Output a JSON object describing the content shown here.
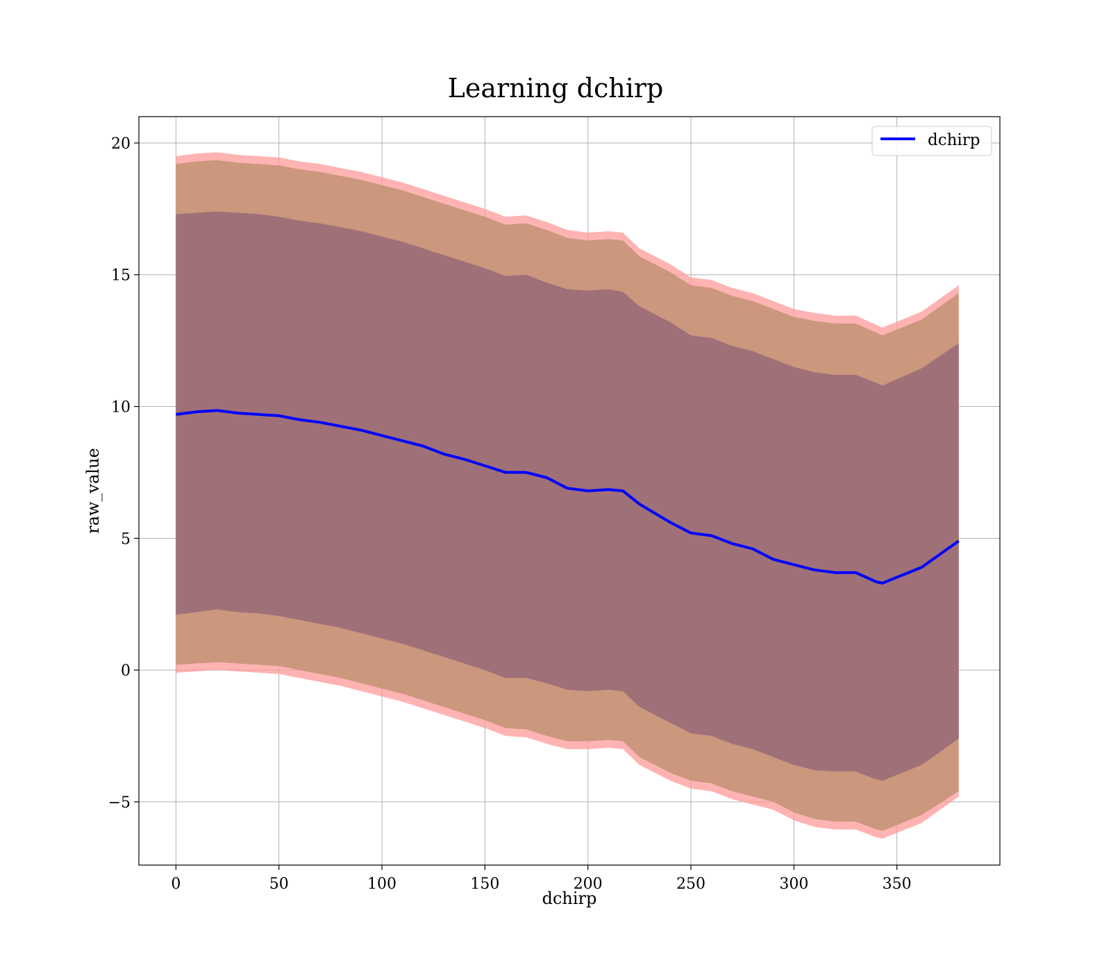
{
  "chart_data": {
    "type": "area",
    "title": "Learning dchirp",
    "xlabel": "dchirp",
    "ylabel": "raw_value",
    "xlim": [
      -18,
      400
    ],
    "ylim": [
      -7.4,
      21
    ],
    "xticks": [
      0,
      50,
      100,
      150,
      200,
      250,
      300,
      350
    ],
    "yticks": [
      -5,
      0,
      5,
      10,
      15,
      20
    ],
    "xtick_labels": [
      "0",
      "50",
      "100",
      "150",
      "200",
      "250",
      "300",
      "350"
    ],
    "ytick_labels": [
      "−5",
      "0",
      "5",
      "10",
      "15",
      "20"
    ],
    "grid": true,
    "legend": {
      "position": "top-right",
      "entries": [
        "dchirp"
      ]
    },
    "colors": {
      "line": "#0000ff",
      "outer_band": "#ff9999",
      "middle_band": "#c8967a",
      "inner_band": "#a07078"
    },
    "x": [
      0,
      10,
      20,
      30,
      40,
      50,
      60,
      70,
      80,
      90,
      100,
      110,
      120,
      130,
      140,
      150,
      160,
      170,
      180,
      190,
      200,
      210,
      217,
      225,
      240,
      250,
      260,
      270,
      280,
      290,
      300,
      310,
      320,
      330,
      340,
      343,
      362,
      380
    ],
    "series": [
      {
        "name": "dchirp",
        "values": [
          9.7,
          9.8,
          9.85,
          9.75,
          9.7,
          9.65,
          9.5,
          9.4,
          9.25,
          9.1,
          8.9,
          8.7,
          8.5,
          8.2,
          8.0,
          7.75,
          7.5,
          7.5,
          7.3,
          6.9,
          6.8,
          6.85,
          6.8,
          6.3,
          5.6,
          5.2,
          5.1,
          4.8,
          4.6,
          4.2,
          4.0,
          3.8,
          3.7,
          3.7,
          3.35,
          3.3,
          3.9,
          4.9
        ]
      }
    ],
    "bands": [
      {
        "lower": [
          -0.1,
          -0.05,
          0.0,
          -0.05,
          -0.1,
          -0.15,
          -0.3,
          -0.45,
          -0.6,
          -0.8,
          -1.0,
          -1.2,
          -1.45,
          -1.7,
          -1.95,
          -2.2,
          -2.5,
          -2.55,
          -2.8,
          -3.0,
          -3.0,
          -2.95,
          -3.0,
          -3.6,
          -4.2,
          -4.5,
          -4.6,
          -4.9,
          -5.1,
          -5.3,
          -5.7,
          -5.95,
          -6.05,
          -6.05,
          -6.35,
          -6.4,
          -5.8,
          -4.8
        ],
        "upper": [
          19.5,
          19.6,
          19.65,
          19.55,
          19.5,
          19.45,
          19.3,
          19.2,
          19.05,
          18.9,
          18.7,
          18.5,
          18.25,
          18.0,
          17.75,
          17.5,
          17.2,
          17.25,
          17.0,
          16.7,
          16.6,
          16.65,
          16.6,
          16.0,
          15.4,
          14.9,
          14.8,
          14.5,
          14.3,
          14.0,
          13.7,
          13.55,
          13.45,
          13.45,
          13.1,
          13.0,
          13.6,
          14.6
        ]
      },
      {
        "lower": [
          0.2,
          0.25,
          0.3,
          0.25,
          0.2,
          0.15,
          0.0,
          -0.15,
          -0.3,
          -0.5,
          -0.7,
          -0.9,
          -1.15,
          -1.4,
          -1.65,
          -1.9,
          -2.2,
          -2.25,
          -2.5,
          -2.7,
          -2.7,
          -2.65,
          -2.7,
          -3.3,
          -3.9,
          -4.2,
          -4.3,
          -4.6,
          -4.8,
          -5.0,
          -5.4,
          -5.65,
          -5.75,
          -5.75,
          -6.05,
          -6.1,
          -5.5,
          -4.6
        ],
        "upper": [
          19.2,
          19.3,
          19.35,
          19.25,
          19.2,
          19.15,
          19.0,
          18.9,
          18.75,
          18.6,
          18.4,
          18.2,
          17.95,
          17.7,
          17.45,
          17.2,
          16.9,
          16.95,
          16.7,
          16.4,
          16.3,
          16.35,
          16.3,
          15.7,
          15.1,
          14.6,
          14.5,
          14.2,
          14.0,
          13.7,
          13.4,
          13.25,
          13.15,
          13.15,
          12.8,
          12.7,
          13.3,
          14.3
        ]
      },
      {
        "lower": [
          2.1,
          2.2,
          2.3,
          2.2,
          2.15,
          2.05,
          1.9,
          1.75,
          1.6,
          1.4,
          1.2,
          1.0,
          0.75,
          0.5,
          0.25,
          0.0,
          -0.3,
          -0.3,
          -0.5,
          -0.75,
          -0.8,
          -0.75,
          -0.8,
          -1.4,
          -2.0,
          -2.4,
          -2.5,
          -2.8,
          -3.0,
          -3.3,
          -3.6,
          -3.8,
          -3.85,
          -3.85,
          -4.15,
          -4.2,
          -3.6,
          -2.6
        ],
        "upper": [
          17.3,
          17.35,
          17.4,
          17.35,
          17.3,
          17.2,
          17.05,
          16.95,
          16.8,
          16.65,
          16.45,
          16.25,
          16.0,
          15.75,
          15.5,
          15.25,
          14.95,
          15.0,
          14.7,
          14.45,
          14.4,
          14.45,
          14.35,
          13.8,
          13.2,
          12.7,
          12.6,
          12.3,
          12.1,
          11.8,
          11.5,
          11.3,
          11.2,
          11.2,
          10.9,
          10.8,
          11.45,
          12.4
        ]
      }
    ]
  }
}
